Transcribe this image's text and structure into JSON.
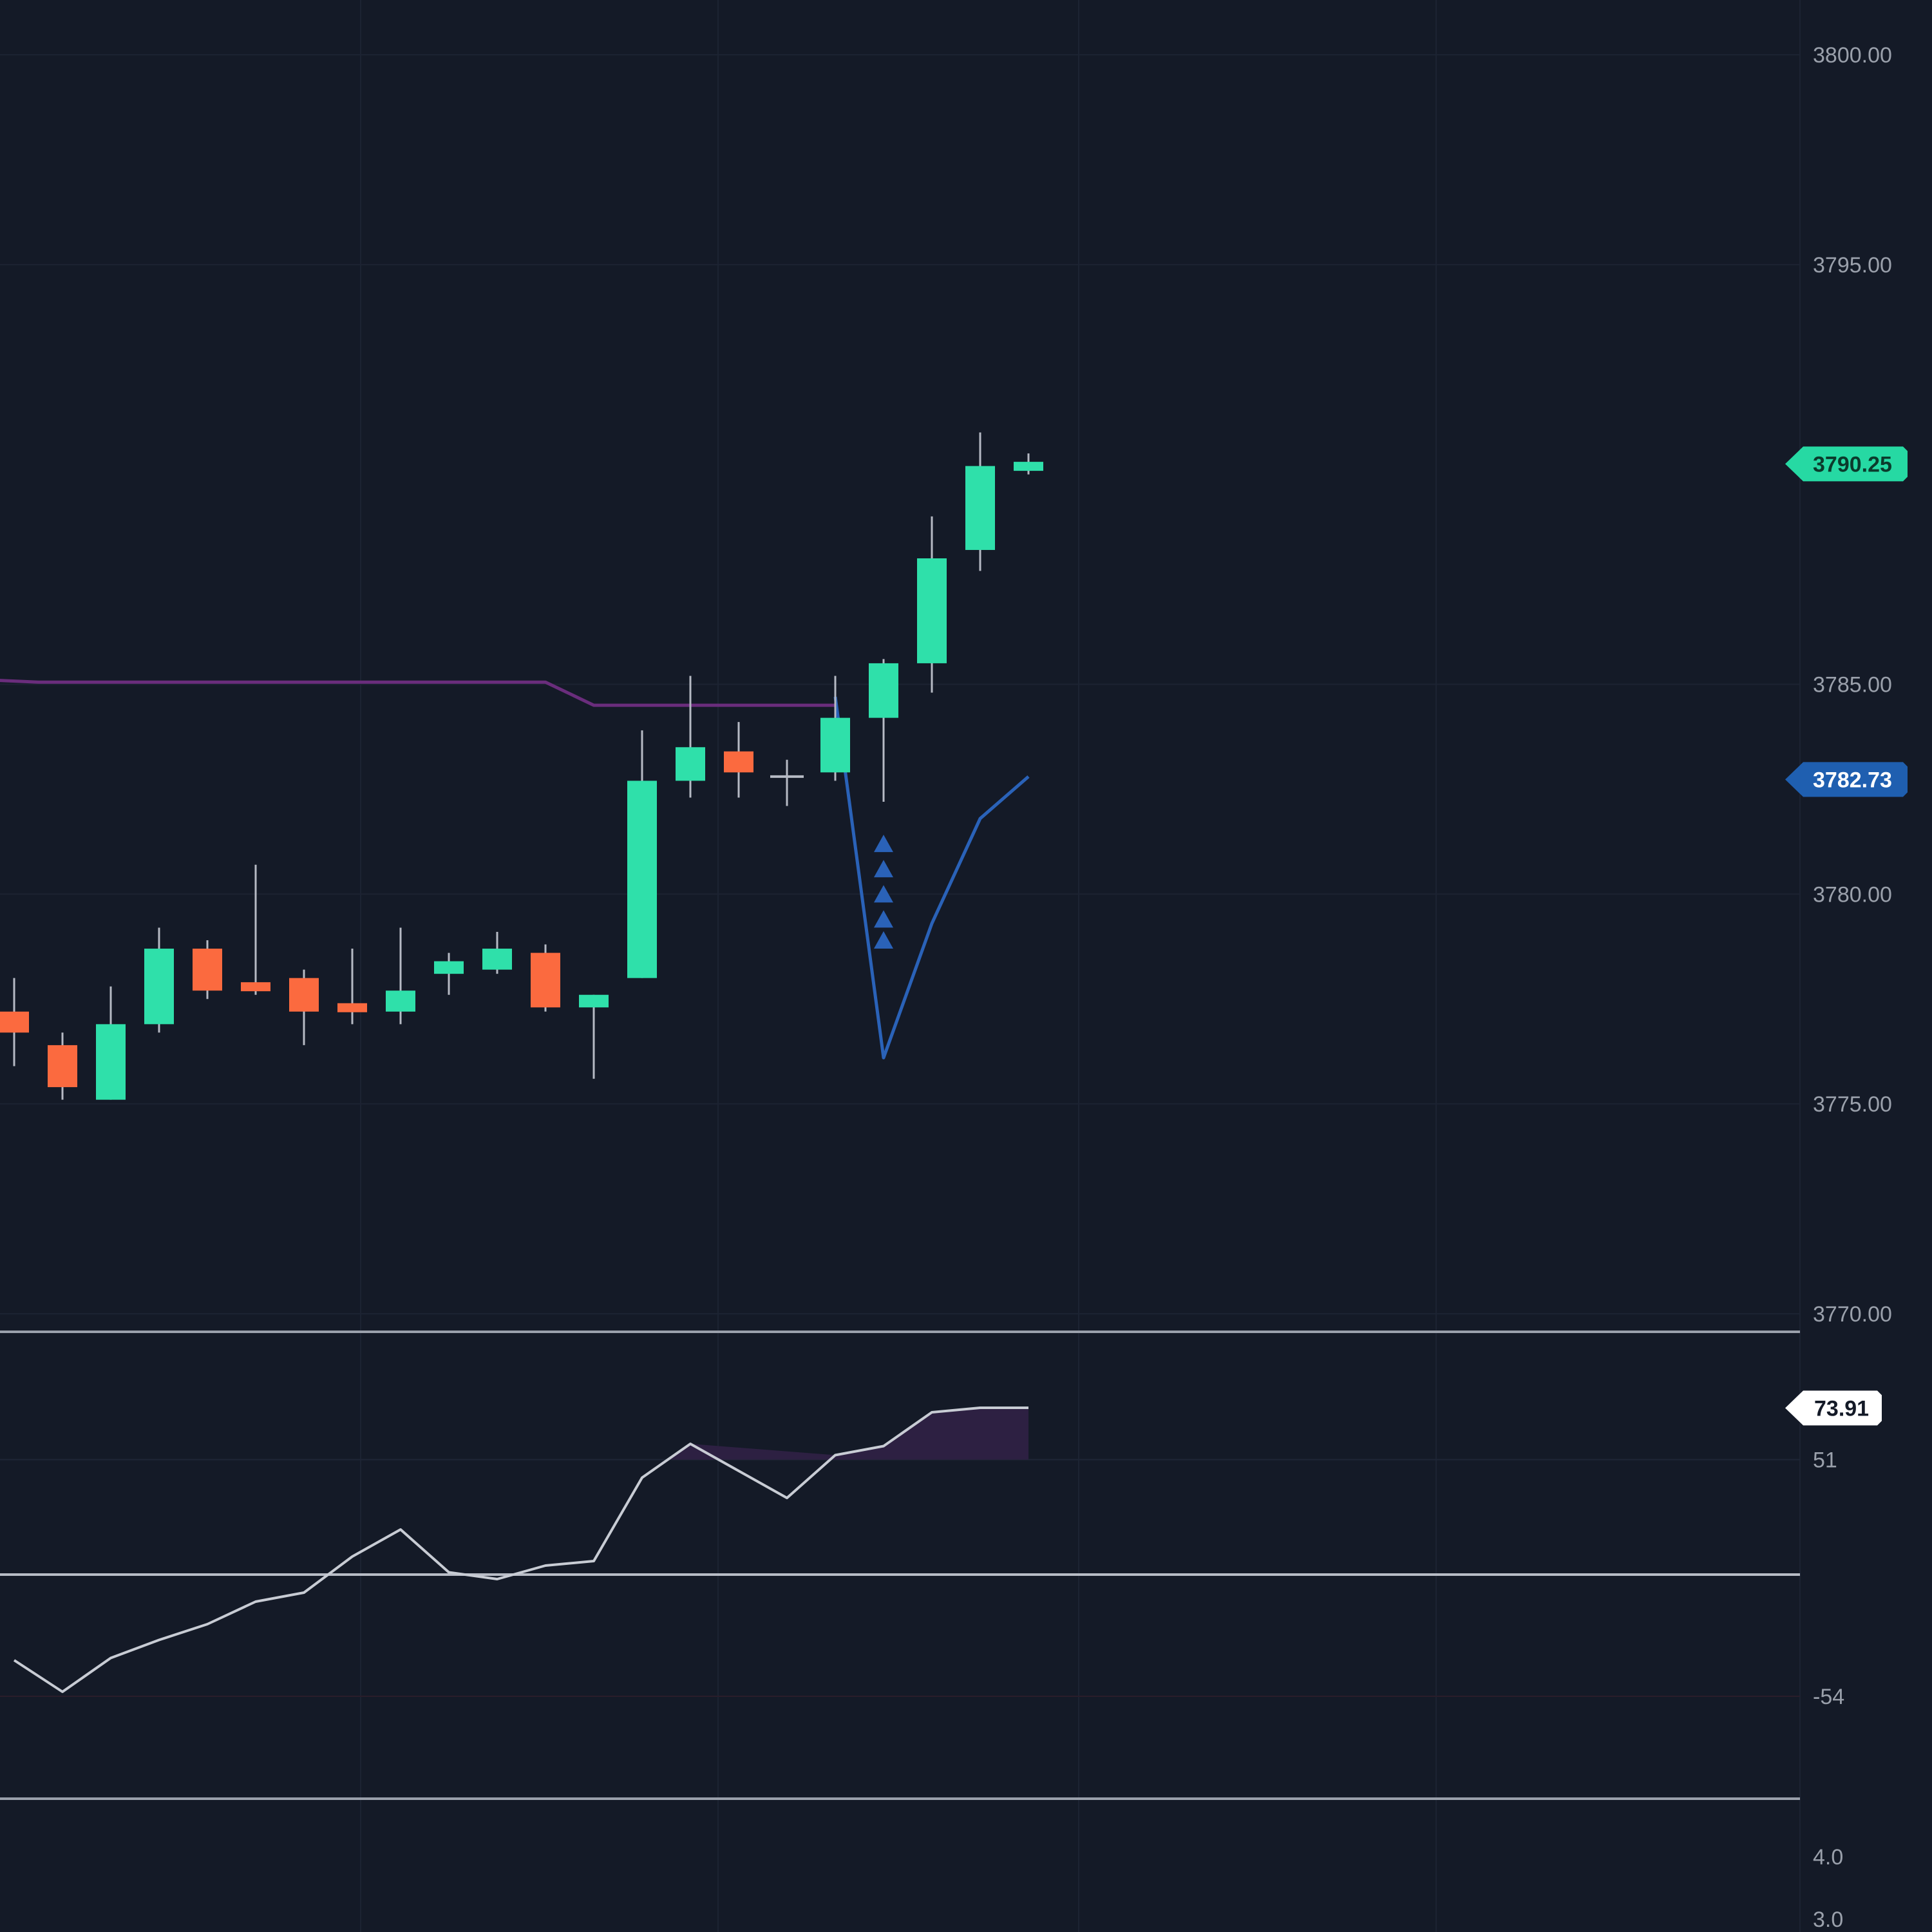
{
  "chart_data": [
    {
      "type": "candlestick",
      "panel": "price",
      "title": "",
      "xlabel": "",
      "ylabel": "",
      "ylim": [
        3770,
        3800
      ],
      "y_ticks": [
        "3800.00",
        "3795.00",
        "3785.00",
        "3780.00",
        "3775.00",
        "3770.00"
      ],
      "grid": true,
      "candles": [
        {
          "o": 3777.2,
          "h": 3778.0,
          "l": 3775.9,
          "c": 3776.7
        },
        {
          "o": 3776.4,
          "h": 3776.7,
          "l": 3775.1,
          "c": 3775.4
        },
        {
          "o": 3775.1,
          "h": 3777.8,
          "l": 3775.1,
          "c": 3776.9
        },
        {
          "o": 3776.9,
          "h": 3779.2,
          "l": 3776.7,
          "c": 3778.7
        },
        {
          "o": 3778.7,
          "h": 3778.9,
          "l": 3777.5,
          "c": 3777.7
        },
        {
          "o": 3777.9,
          "h": 3780.7,
          "l": 3777.6,
          "c": 3777.8
        },
        {
          "o": 3778.0,
          "h": 3778.2,
          "l": 3776.4,
          "c": 3777.2
        },
        {
          "o": 3777.4,
          "h": 3778.7,
          "l": 3776.9,
          "c": 3777.2
        },
        {
          "o": 3777.2,
          "h": 3779.2,
          "l": 3776.9,
          "c": 3777.7
        },
        {
          "o": 3778.1,
          "h": 3778.6,
          "l": 3777.6,
          "c": 3778.4
        },
        {
          "o": 3778.2,
          "h": 3779.1,
          "l": 3778.1,
          "c": 3778.7
        },
        {
          "o": 3778.6,
          "h": 3778.8,
          "l": 3777.2,
          "c": 3777.3
        },
        {
          "o": 3777.3,
          "h": 3777.6,
          "l": 3775.6,
          "c": 3777.6
        },
        {
          "o": 3778.0,
          "h": 3783.9,
          "l": 3778.0,
          "c": 3782.7
        },
        {
          "o": 3782.7,
          "h": 3785.2,
          "l": 3782.3,
          "c": 3783.5
        },
        {
          "o": 3783.4,
          "h": 3784.1,
          "l": 3782.3,
          "c": 3782.9
        },
        {
          "o": 3782.8,
          "h": 3783.2,
          "l": 3782.1,
          "c": 3782.8
        },
        {
          "o": 3782.9,
          "h": 3785.2,
          "l": 3782.7,
          "c": 3784.2
        },
        {
          "o": 3784.2,
          "h": 3785.6,
          "l": 3782.2,
          "c": 3785.5
        },
        {
          "o": 3785.5,
          "h": 3789.0,
          "l": 3784.8,
          "c": 3788.0
        },
        {
          "o": 3788.2,
          "h": 3791.0,
          "l": 3787.7,
          "c": 3790.2
        },
        {
          "o": 3790.1,
          "h": 3790.5,
          "l": 3790.0,
          "c": 3790.3
        }
      ],
      "overlays": [
        {
          "name": "",
          "color": "#6a2d7c",
          "style": "step",
          "x": [
            -0.5,
            0.5,
            11,
            12,
            17
          ],
          "values": [
            3785.1,
            3785.05,
            3785.05,
            3784.5,
            3784.5
          ]
        },
        {
          "name": "",
          "color": "#2a62b8",
          "style": "line",
          "x": [
            17,
            18,
            19,
            20,
            21
          ],
          "values": [
            3784.7,
            3776.1,
            3779.3,
            3781.8,
            3782.8
          ]
        }
      ],
      "markers": [
        {
          "index": 18,
          "shape": "triangle-up",
          "color": "#2a62b8",
          "values": [
            3781.2,
            3780.6,
            3780.0,
            3779.4,
            3778.9
          ]
        }
      ],
      "price_tags": [
        {
          "label": "3790.25",
          "value": 3790.25,
          "color": "#26d9a3",
          "text_color": "#0b3b2c"
        },
        {
          "label": "3782.73",
          "value": 3782.73,
          "color": "#1f5fb0",
          "text_color": "#ffffff"
        }
      ],
      "up_color": "#2fe0aa",
      "down_color": "#fb6a3f",
      "wick_color": "#b6bac4"
    },
    {
      "type": "line",
      "panel": "oscillator",
      "title": "",
      "xlabel": "",
      "ylabel": "",
      "ylim": [
        -100,
        100
      ],
      "y_ticks": [
        {
          "label": "51",
          "value": 51
        },
        {
          "label": "-54",
          "value": -54
        }
      ],
      "reference_lines": [
        0
      ],
      "values": [
        -38,
        -52,
        -37,
        -29,
        -22,
        -12,
        -8,
        8,
        20,
        1,
        -2,
        4,
        6,
        43,
        58,
        46,
        34,
        53,
        57,
        72,
        74,
        74
      ],
      "fill_above": 51,
      "fill_color": "#2d2042",
      "color": "#c8ccd4",
      "price_tag": {
        "label": "73.91",
        "value": 73.91,
        "color": "#ffffff",
        "text_color": "#141a27"
      }
    },
    {
      "type": "line",
      "panel": "bottom",
      "title": "",
      "y_ticks": [
        {
          "label": "4.0",
          "value": 4.0
        },
        {
          "label": "3.0",
          "value": 3.0
        }
      ],
      "values": []
    }
  ]
}
